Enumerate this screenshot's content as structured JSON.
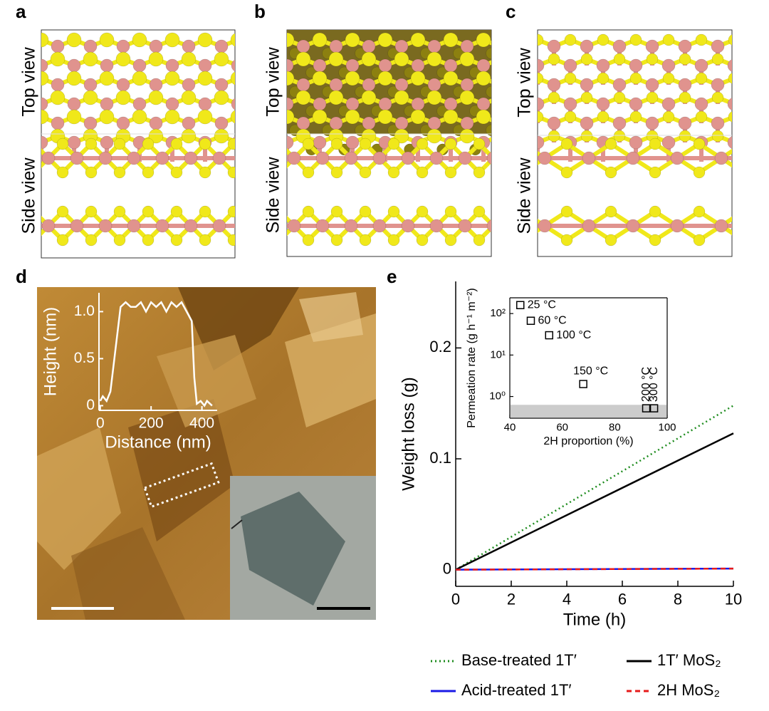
{
  "panel_labels": [
    "a",
    "b",
    "c",
    "d",
    "e"
  ],
  "structure_views": {
    "top": "Top view",
    "side": "Side view"
  },
  "chart_data": [
    {
      "type": "line",
      "xlabel": "Distance (nm)",
      "ylabel": "Height (nm)",
      "xlim": [
        -5,
        460
      ],
      "xticks": [
        0,
        200,
        400
      ],
      "ylim": [
        -0.05,
        1.2
      ],
      "yticks": [
        0,
        0.5,
        {
          "value": 1,
          "label": "1.0"
        }
      ],
      "color": "#ffffff",
      "x": [
        0,
        10,
        25,
        40,
        60,
        80,
        100,
        120,
        140,
        160,
        180,
        200,
        220,
        240,
        260,
        280,
        300,
        320,
        340,
        360,
        370,
        380,
        395,
        410,
        420,
        440
      ],
      "values": [
        0.05,
        0.1,
        0.05,
        0.15,
        0.6,
        1.05,
        1.1,
        1.05,
        1.05,
        1.1,
        1.0,
        1.1,
        1.05,
        1.1,
        1.0,
        1.1,
        1.05,
        1.1,
        1.0,
        0.9,
        0.3,
        0.02,
        0.05,
        0.0,
        0.05,
        0.0
      ]
    },
    {
      "type": "line",
      "xlabel": "Time (h)",
      "ylabel": "Weight loss (g)",
      "xlim": [
        0,
        10
      ],
      "xticks": [
        0,
        2,
        4,
        6,
        8,
        10
      ],
      "ylim": [
        -0.015,
        0.26
      ],
      "yticks": [
        0,
        0.1,
        0.2
      ],
      "series": [
        {
          "name": "Base-treated 1T′",
          "color": "#1e8c1e",
          "style": "dotted",
          "x": [
            0,
            10
          ],
          "values": [
            0,
            0.148
          ]
        },
        {
          "name": "1T′ MoS₂",
          "color": "#000000",
          "style": "solid",
          "x": [
            0,
            10
          ],
          "values": [
            0,
            0.123
          ]
        },
        {
          "name": "Acid-treated 1T′",
          "color": "#1a1ae6",
          "style": "solid",
          "x": [
            0,
            10
          ],
          "values": [
            0,
            0.001
          ]
        },
        {
          "name": "2H MoS₂",
          "color": "#e61a1a",
          "style": "dashed",
          "x": [
            0,
            10
          ],
          "values": [
            0,
            0.001
          ]
        }
      ]
    },
    {
      "type": "scatter",
      "xlabel": "2H proportion (%)",
      "ylabel": "Permeation rate (g h⁻¹ m⁻²)",
      "log_y": true,
      "xlim": [
        40,
        100
      ],
      "xticks": [
        40,
        60,
        80,
        100
      ],
      "ylim": [
        0.3,
        240
      ],
      "yticks": [
        {
          "value": 1,
          "label": "10⁰"
        },
        {
          "value": 10,
          "label": "10¹"
        },
        {
          "value": 100,
          "label": "10²"
        }
      ],
      "band_max": 0.63,
      "band_color": "#cccccc",
      "x": [
        44,
        48,
        55,
        68,
        92,
        95
      ],
      "values": [
        160,
        67,
        30,
        2.0,
        0.52,
        0.52
      ],
      "point_labels": [
        "25 °C",
        "60 °C",
        "100 °C",
        "150 °C",
        "200 °C",
        "300 °C"
      ]
    }
  ]
}
